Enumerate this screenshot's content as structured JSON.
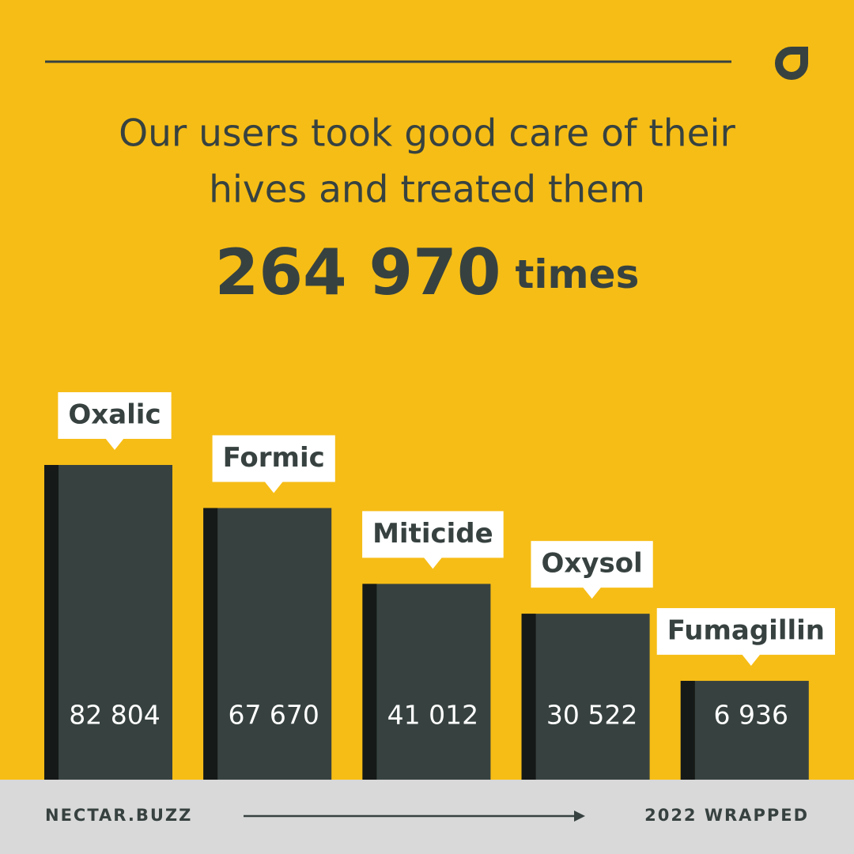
{
  "header": {
    "title_lines": [
      "Our users took good care of their",
      "hives and treated them"
    ],
    "total": "264 970",
    "total_unit": "times"
  },
  "chart_data": {
    "type": "bar",
    "categories": [
      "Oxalic",
      "Formic",
      "Miticide",
      "Oxysol",
      "Fumagillin"
    ],
    "values": [
      82804,
      67670,
      41012,
      30522,
      6936
    ],
    "value_labels": [
      "82 804",
      "67 670",
      "41 012",
      "30 522",
      "6 936"
    ],
    "color": "#374240"
  },
  "footer": {
    "left": "NECTAR.BUZZ",
    "right": "2022 WRAPPED"
  }
}
